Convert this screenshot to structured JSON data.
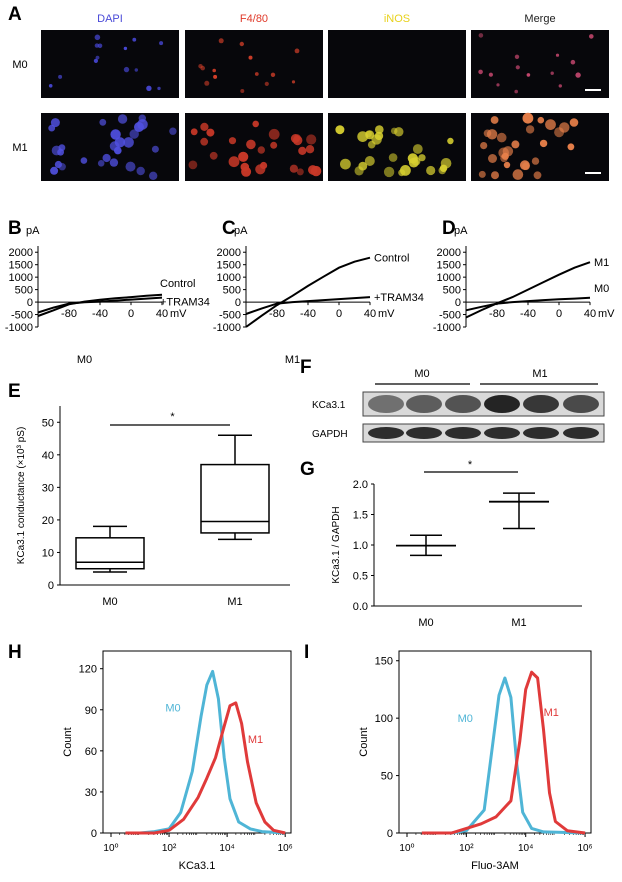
{
  "panel_letters": [
    "A",
    "B",
    "C",
    "D",
    "E",
    "F",
    "G",
    "H",
    "I"
  ],
  "panel_A": {
    "columns": [
      "DAPI",
      "F4/80",
      "iNOS",
      "Merge"
    ],
    "column_colors": [
      "#4a4ad8",
      "#e03a2a",
      "#e8d21c",
      "#222222"
    ],
    "rows": [
      "M0",
      "M1"
    ]
  },
  "chart_data": [
    {
      "panel": "B",
      "type": "line",
      "ylabel": "pA",
      "xunit": "mV",
      "xlabel": "M0",
      "xticks": [
        "-80",
        "-40",
        "0",
        "40"
      ],
      "yticks": [
        "2000",
        "1500",
        "1000",
        "500",
        "0",
        "-500",
        "-1000"
      ],
      "xlim": [
        -120,
        40
      ],
      "ylim": [
        -1000,
        2250
      ],
      "series": [
        {
          "name": "Control",
          "x": [
            -120,
            -100,
            -80,
            -60,
            -40,
            -20,
            0,
            20,
            40
          ],
          "y": [
            -560,
            -330,
            -90,
            20,
            90,
            150,
            200,
            250,
            290
          ]
        },
        {
          "name": "+TRAM34",
          "x": [
            -120,
            -100,
            -80,
            -60,
            -40,
            -20,
            0,
            20,
            40
          ],
          "y": [
            -420,
            -220,
            -60,
            -10,
            20,
            60,
            100,
            140,
            180
          ]
        }
      ]
    },
    {
      "panel": "C",
      "type": "line",
      "ylabel": "pA",
      "xunit": "mV",
      "xlabel": "M1",
      "xticks": [
        "-80",
        "-40",
        "0",
        "40"
      ],
      "yticks": [
        "2000",
        "1500",
        "1000",
        "500",
        "0",
        "-500",
        "-1000"
      ],
      "xlim": [
        -120,
        40
      ],
      "ylim": [
        -1000,
        2250
      ],
      "series": [
        {
          "name": "Control",
          "x": [
            -120,
            -100,
            -80,
            -60,
            -40,
            -20,
            0,
            20,
            40
          ],
          "y": [
            -1000,
            -550,
            -120,
            250,
            650,
            1020,
            1380,
            1620,
            1780
          ]
        },
        {
          "name": "+TRAM34",
          "x": [
            -120,
            -100,
            -80,
            -60,
            -40,
            -20,
            0,
            20,
            40
          ],
          "y": [
            -480,
            -260,
            -60,
            0,
            40,
            80,
            120,
            160,
            200
          ]
        }
      ]
    },
    {
      "panel": "D",
      "type": "line",
      "ylabel": "pA",
      "xunit": "mV",
      "xlabel": "",
      "xticks": [
        "-80",
        "-40",
        "0",
        "40"
      ],
      "yticks": [
        "2000",
        "1500",
        "1000",
        "500",
        "0",
        "-500",
        "-1000"
      ],
      "xlim": [
        -120,
        40
      ],
      "ylim": [
        -1000,
        2250
      ],
      "series": [
        {
          "name": "M1",
          "x": [
            -120,
            -100,
            -80,
            -60,
            -40,
            -20,
            0,
            20,
            40
          ],
          "y": [
            -620,
            -320,
            -50,
            200,
            500,
            800,
            1100,
            1380,
            1600
          ]
        },
        {
          "name": "M0",
          "x": [
            -120,
            -100,
            -80,
            -60,
            -40,
            -20,
            0,
            20,
            40
          ],
          "y": [
            -330,
            -190,
            -60,
            0,
            40,
            80,
            110,
            140,
            170
          ]
        }
      ]
    },
    {
      "panel": "E",
      "type": "box",
      "ylabel": "KCa3.1 conductance (×10³ pS)",
      "categories": [
        "M0",
        "M1"
      ],
      "yticks": [
        "0",
        "10",
        "20",
        "30",
        "40",
        "50"
      ],
      "ylim": [
        0,
        55
      ],
      "boxes": [
        {
          "min": 4,
          "q1": 5,
          "median": 7,
          "q3": 14.5,
          "max": 18
        },
        {
          "min": 14,
          "q1": 16,
          "median": 19.5,
          "q3": 37,
          "max": 46
        }
      ],
      "significance": "*"
    },
    {
      "panel": "F",
      "type": "blot",
      "groups": [
        "M0",
        "M1"
      ],
      "bands": [
        "KCa3.1",
        "GAPDH"
      ]
    },
    {
      "panel": "G",
      "type": "dot-errorbar",
      "ylabel": "KCa3.1 / GAPDH",
      "categories": [
        "M0",
        "M1"
      ],
      "yticks": [
        "0.0",
        "0.5",
        "1.0",
        "1.5",
        "2.0"
      ],
      "ylim": [
        0,
        2.0
      ],
      "points": [
        {
          "mean": 0.99,
          "low": 0.83,
          "high": 1.16
        },
        {
          "mean": 1.71,
          "low": 1.27,
          "high": 1.85
        }
      ],
      "significance": "*"
    },
    {
      "panel": "H",
      "type": "histogram",
      "xlabel": "KCa3.1",
      "ylabel": "Count",
      "xscale": "log",
      "xticks": [
        "10⁰",
        "10²",
        "10⁴",
        "10⁶"
      ],
      "yticks": [
        "0",
        "30",
        "60",
        "90",
        "120"
      ],
      "ylim": [
        0,
        130
      ],
      "series": [
        {
          "name": "M0",
          "color": "#4fb5d6",
          "x": [
            0.5,
            1.0,
            1.5,
            2.0,
            2.4,
            2.8,
            3.1,
            3.3,
            3.5,
            3.7,
            3.9,
            4.1,
            4.4,
            4.8,
            5.2,
            6.0
          ],
          "y": [
            0,
            0,
            1,
            3,
            15,
            45,
            85,
            108,
            118,
            98,
            55,
            25,
            8,
            3,
            1,
            0
          ]
        },
        {
          "name": "M1",
          "color": "#e03a3a",
          "x": [
            0.5,
            1.5,
            2.0,
            2.5,
            3.0,
            3.3,
            3.6,
            3.9,
            4.1,
            4.3,
            4.5,
            4.7,
            5.0,
            5.3,
            5.6,
            6.0
          ],
          "y": [
            0,
            0,
            2,
            10,
            26,
            40,
            55,
            78,
            93,
            95,
            80,
            52,
            22,
            8,
            2,
            0
          ]
        }
      ]
    },
    {
      "panel": "I",
      "type": "histogram",
      "xlabel": "Fluo-3AM",
      "ylabel": "Count",
      "xscale": "log",
      "xticks": [
        "10⁰",
        "10²",
        "10⁴",
        "10⁶"
      ],
      "yticks": [
        "0",
        "50",
        "100",
        "150"
      ],
      "ylim": [
        0,
        155
      ],
      "series": [
        {
          "name": "M0",
          "color": "#4fb5d6",
          "x": [
            0.5,
            1.5,
            2.0,
            2.6,
            2.9,
            3.1,
            3.3,
            3.5,
            3.7,
            3.9,
            4.2,
            4.6,
            6.0
          ],
          "y": [
            0,
            0,
            2,
            20,
            80,
            120,
            135,
            118,
            60,
            18,
            4,
            1,
            0
          ]
        },
        {
          "name": "M1",
          "color": "#e03a3a",
          "x": [
            0.5,
            1.5,
            2.0,
            2.5,
            3.0,
            3.5,
            3.8,
            4.0,
            4.2,
            4.4,
            4.6,
            4.8,
            5.0,
            5.4,
            6.0
          ],
          "y": [
            0,
            0,
            4,
            8,
            14,
            28,
            80,
            125,
            140,
            135,
            90,
            35,
            10,
            2,
            0
          ]
        }
      ]
    }
  ]
}
